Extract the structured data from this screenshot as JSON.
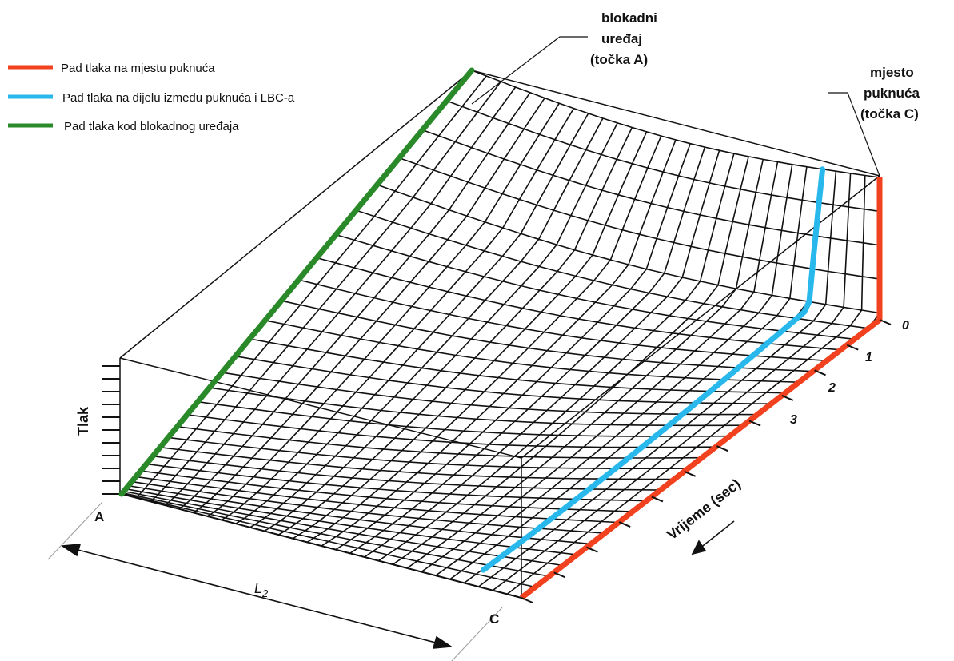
{
  "legend": [
    {
      "label": "Pad tlaka na mjestu puknuća",
      "color": "#f2411e"
    },
    {
      "label": "Pad tlaka na dijelu između puknuća i LBC-a",
      "color": "#28b8ec"
    },
    {
      "label": "Pad tlaka kod blokadnog uređaja",
      "color": "#2a8a2a"
    }
  ],
  "callouts": {
    "blocking_device": [
      "blokadni",
      "uređaj",
      "(točka A)"
    ],
    "rupture_site": [
      "mjesto",
      "puknuća",
      "(točka C)"
    ]
  },
  "axes": {
    "pressure": "Tlak",
    "time": "Vrijeme (sec)",
    "length": "L",
    "length_sub": "2",
    "time_ticks": [
      "0",
      "1",
      "2",
      "3"
    ]
  },
  "points": {
    "a": "A",
    "c": "C"
  },
  "colors": {
    "mesh": "#111111",
    "red": "#f2411e",
    "blue": "#28b8ec",
    "green": "#2a8a2a"
  }
}
